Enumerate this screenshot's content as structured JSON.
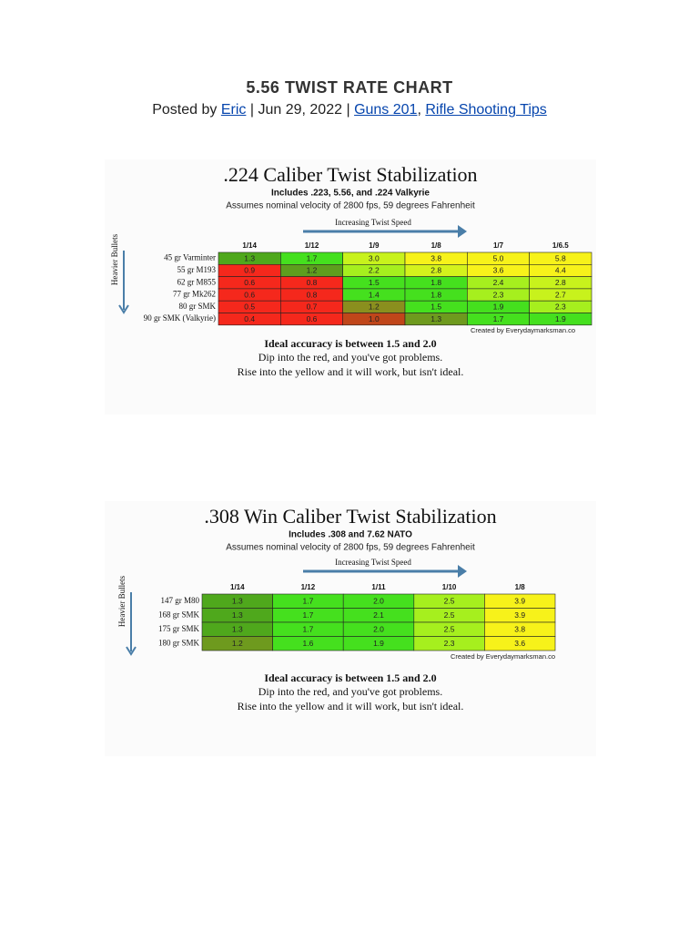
{
  "header": {
    "title": "5.56 TWIST RATE CHART",
    "byline": {
      "prefix": "Posted by",
      "author": "Eric",
      "separator": "|",
      "date": "Jun 29, 2022",
      "categories": [
        "Guns 201",
        "Rifle Shooting Tips"
      ],
      "list_separator": ","
    }
  },
  "charts": [
    {
      "title": ".224 Caliber Twist Stabilization",
      "subtitle": "Includes .223, 5.56, and .224 Valkyrie",
      "note": "Assumes nominal velocity of 2800 fps, 59 degrees Fahrenheit",
      "arrow_label": "Increasing Twist Speed",
      "axis_label": "Heavier Bullets",
      "columns": [
        "1/14",
        "1/12",
        "1/9",
        "1/8",
        "1/7",
        "1/6.5"
      ],
      "rows": [
        {
          "label": "45 gr Varminter",
          "cells": [
            "1.3",
            "1.7",
            "3.0",
            "3.8",
            "5.0",
            "5.8"
          ],
          "colors": [
            "#4fa81c",
            "#45e01e",
            "#c8f21c",
            "#f7f21a",
            "#f7f21a",
            "#f7f21a"
          ]
        },
        {
          "label": "55 gr M193",
          "cells": [
            "0.9",
            "1.2",
            "2.2",
            "2.8",
            "3.6",
            "4.4"
          ],
          "colors": [
            "#f5281c",
            "#5e9e1e",
            "#a6ef1e",
            "#d4f21c",
            "#f7f21a",
            "#f7f21a"
          ]
        },
        {
          "label": "62 gr M855",
          "cells": [
            "0.6",
            "0.8",
            "1.5",
            "1.8",
            "2.4",
            "2.8"
          ],
          "colors": [
            "#f5281c",
            "#f5281c",
            "#45e01e",
            "#45e01e",
            "#a6ef1e",
            "#c8f21c"
          ]
        },
        {
          "label": "77 gr Mk262",
          "cells": [
            "0.6",
            "0.8",
            "1.4",
            "1.8",
            "2.3",
            "2.7"
          ],
          "colors": [
            "#f5281c",
            "#f5281c",
            "#45e01e",
            "#45e01e",
            "#a6ef1e",
            "#c8f21c"
          ]
        },
        {
          "label": "80 gr SMK",
          "cells": [
            "0.5",
            "0.7",
            "1.2",
            "1.5",
            "1.9",
            "2.3"
          ],
          "colors": [
            "#f5281c",
            "#f5281c",
            "#8a8f1e",
            "#45e01e",
            "#45e01e",
            "#a6ef1e"
          ]
        },
        {
          "label": "90 gr SMK (Valkyrie)",
          "cells": [
            "0.4",
            "0.6",
            "1.0",
            "1.3",
            "1.7",
            "1.9"
          ],
          "colors": [
            "#f5281c",
            "#f5281c",
            "#c0461a",
            "#6e9a1e",
            "#45e01e",
            "#45e01e"
          ]
        }
      ],
      "credit": "Created by Everydaymarksman.co",
      "footer": [
        "Ideal accuracy is between 1.5 and 2.0",
        "Dip into the red, and you've got problems.",
        "Rise into the yellow and it will work, but isn't ideal."
      ]
    },
    {
      "title": ".308 Win Caliber Twist Stabilization",
      "subtitle": "Includes .308 and 7.62 NATO",
      "note": "Assumes nominal velocity of 2800 fps, 59 degrees Fahrenheit",
      "arrow_label": "Increasing Twist Speed",
      "axis_label": "Heavier Bullets",
      "columns": [
        "1/14",
        "1/12",
        "1/11",
        "1/10",
        "1/8"
      ],
      "rows": [
        {
          "label": "147 gr M80",
          "cells": [
            "1.3",
            "1.7",
            "2.0",
            "2.5",
            "3.9"
          ],
          "colors": [
            "#4fa81c",
            "#45e01e",
            "#45e01e",
            "#a6ef1e",
            "#f7f21a"
          ]
        },
        {
          "label": "168 gr SMK",
          "cells": [
            "1.3",
            "1.7",
            "2.1",
            "2.5",
            "3.9"
          ],
          "colors": [
            "#4fa81c",
            "#45e01e",
            "#45e01e",
            "#a6ef1e",
            "#f7f21a"
          ]
        },
        {
          "label": "175 gr SMK",
          "cells": [
            "1.3",
            "1.7",
            "2.0",
            "2.5",
            "3.8"
          ],
          "colors": [
            "#4fa81c",
            "#45e01e",
            "#45e01e",
            "#a6ef1e",
            "#f7f21a"
          ]
        },
        {
          "label": "180 gr SMK",
          "cells": [
            "1.2",
            "1.6",
            "1.9",
            "2.3",
            "3.6"
          ],
          "colors": [
            "#6e9a1e",
            "#45e01e",
            "#45e01e",
            "#a6ef1e",
            "#f7f21a"
          ]
        }
      ],
      "credit": "Created by Everydaymarksman.co",
      "footer": [
        "Ideal accuracy is between 1.5 and 2.0",
        "Dip into the red, and you've got problems.",
        "Rise into the yellow and it will work, but isn't ideal."
      ]
    }
  ]
}
